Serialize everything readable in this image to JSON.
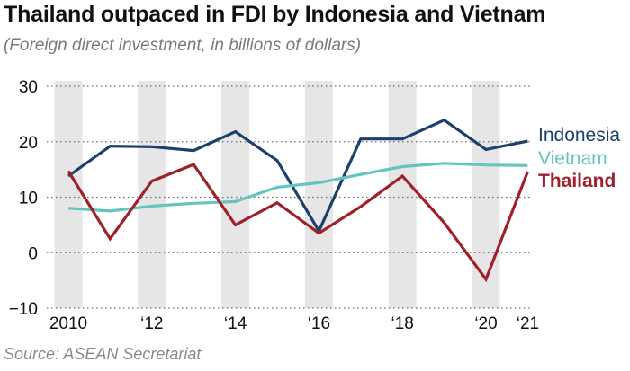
{
  "header": {
    "title": "Thailand outpaced in FDI by Indonesia and Vietnam",
    "subtitle": "(Foreign direct investment, in billions of dollars)"
  },
  "footer": {
    "source": "Source: ASEAN Secretariat"
  },
  "chart_data": {
    "type": "line",
    "x": [
      2010,
      2011,
      2012,
      2013,
      2014,
      2015,
      2016,
      2017,
      2018,
      2019,
      2020,
      2021
    ],
    "x_tick_labels": [
      "2010",
      "‘12",
      "‘14",
      "‘16",
      "‘18",
      "‘20",
      "‘21"
    ],
    "x_tick_values": [
      2010,
      2012,
      2014,
      2016,
      2018,
      2020,
      2021
    ],
    "y_ticks": [
      "30",
      "20",
      "10",
      "0",
      "−10"
    ],
    "y_tick_values": [
      30,
      20,
      10,
      0,
      -10
    ],
    "ylim": [
      -10,
      30
    ],
    "grid": "horizontal dotted",
    "shaded_years": [
      2010,
      2012,
      2014,
      2016,
      2018,
      2020
    ],
    "legend_placement": "right",
    "series": [
      {
        "name": "Indonesia",
        "color": "#1d3f6e",
        "values": [
          13.8,
          19.2,
          19.1,
          18.4,
          21.8,
          16.6,
          3.9,
          20.5,
          20.5,
          23.9,
          18.6,
          20.1
        ]
      },
      {
        "name": "Vietnam",
        "color": "#63c5bd",
        "values": [
          8.0,
          7.5,
          8.4,
          8.9,
          9.2,
          11.8,
          12.6,
          14.1,
          15.5,
          16.1,
          15.8,
          15.7
        ]
      },
      {
        "name": "Thailand",
        "color": "#a0202a",
        "values": [
          14.7,
          2.5,
          12.9,
          15.9,
          5.0,
          9.0,
          3.5,
          8.3,
          13.8,
          5.4,
          -4.8,
          14.6
        ]
      }
    ]
  }
}
